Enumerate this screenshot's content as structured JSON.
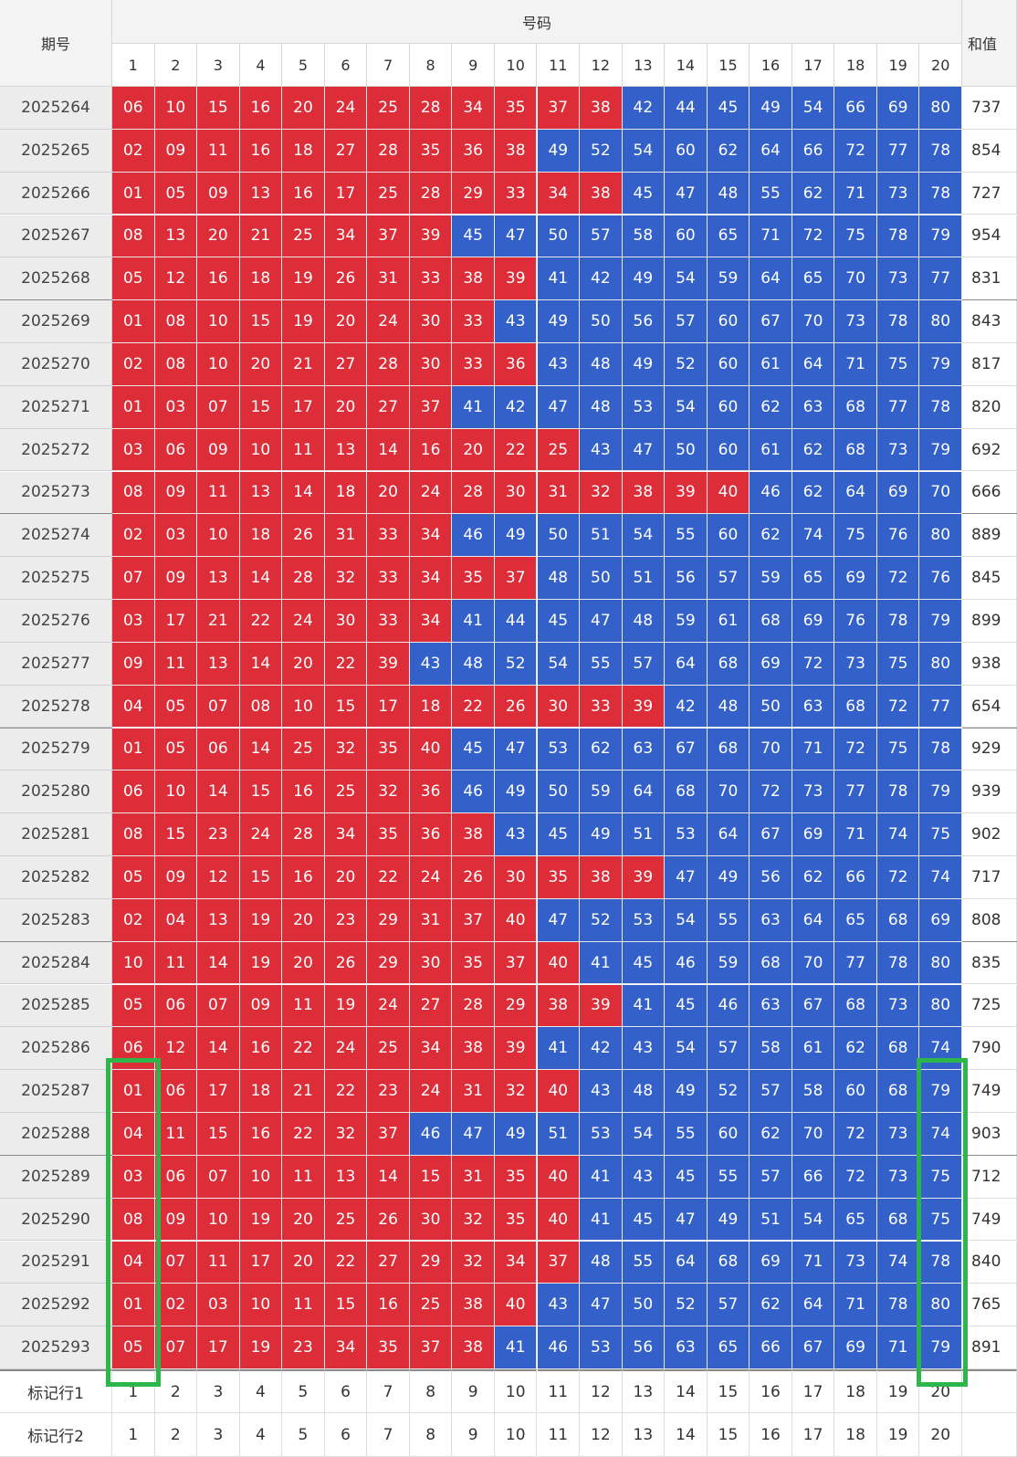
{
  "header": {
    "issue_label": "期号",
    "numbers_label": "号码",
    "sum_label": "和值",
    "columns": [
      1,
      2,
      3,
      4,
      5,
      6,
      7,
      8,
      9,
      10,
      11,
      12,
      13,
      14,
      15,
      16,
      17,
      18,
      19,
      20
    ]
  },
  "rows": [
    {
      "issue": "2025264",
      "numbers": [
        "06",
        "10",
        "15",
        "16",
        "20",
        "24",
        "25",
        "28",
        "34",
        "35",
        "37",
        "38",
        "42",
        "44",
        "45",
        "49",
        "54",
        "66",
        "69",
        "80"
      ],
      "sum": 737
    },
    {
      "issue": "2025265",
      "numbers": [
        "02",
        "09",
        "11",
        "16",
        "18",
        "27",
        "28",
        "35",
        "36",
        "38",
        "49",
        "52",
        "54",
        "60",
        "62",
        "64",
        "66",
        "72",
        "77",
        "78"
      ],
      "sum": 854
    },
    {
      "issue": "2025266",
      "numbers": [
        "01",
        "05",
        "09",
        "13",
        "16",
        "17",
        "25",
        "28",
        "29",
        "33",
        "34",
        "38",
        "45",
        "47",
        "48",
        "55",
        "62",
        "71",
        "73",
        "78"
      ],
      "sum": 727
    },
    {
      "issue": "2025267",
      "numbers": [
        "08",
        "13",
        "20",
        "21",
        "25",
        "34",
        "37",
        "39",
        "45",
        "47",
        "50",
        "57",
        "58",
        "60",
        "65",
        "71",
        "72",
        "75",
        "78",
        "79"
      ],
      "sum": 954
    },
    {
      "issue": "2025268",
      "numbers": [
        "05",
        "12",
        "16",
        "18",
        "19",
        "26",
        "31",
        "33",
        "38",
        "39",
        "41",
        "42",
        "49",
        "54",
        "59",
        "64",
        "65",
        "70",
        "73",
        "77"
      ],
      "sum": 831
    },
    {
      "issue": "2025269",
      "numbers": [
        "01",
        "08",
        "10",
        "15",
        "19",
        "20",
        "24",
        "30",
        "33",
        "43",
        "49",
        "50",
        "56",
        "57",
        "60",
        "67",
        "70",
        "73",
        "78",
        "80"
      ],
      "sum": 843
    },
    {
      "issue": "2025270",
      "numbers": [
        "02",
        "08",
        "10",
        "20",
        "21",
        "27",
        "28",
        "30",
        "33",
        "36",
        "43",
        "48",
        "49",
        "52",
        "60",
        "61",
        "64",
        "71",
        "75",
        "79"
      ],
      "sum": 817
    },
    {
      "issue": "2025271",
      "numbers": [
        "01",
        "03",
        "07",
        "15",
        "17",
        "20",
        "27",
        "37",
        "41",
        "42",
        "47",
        "48",
        "53",
        "54",
        "60",
        "62",
        "63",
        "68",
        "77",
        "78"
      ],
      "sum": 820
    },
    {
      "issue": "2025272",
      "numbers": [
        "03",
        "06",
        "09",
        "10",
        "11",
        "13",
        "14",
        "16",
        "20",
        "22",
        "25",
        "43",
        "47",
        "50",
        "60",
        "61",
        "62",
        "68",
        "73",
        "79"
      ],
      "sum": 692
    },
    {
      "issue": "2025273",
      "numbers": [
        "08",
        "09",
        "11",
        "13",
        "14",
        "18",
        "20",
        "24",
        "28",
        "30",
        "31",
        "32",
        "38",
        "39",
        "40",
        "46",
        "62",
        "64",
        "69",
        "70"
      ],
      "sum": 666
    },
    {
      "issue": "2025274",
      "numbers": [
        "02",
        "03",
        "10",
        "18",
        "26",
        "31",
        "33",
        "34",
        "46",
        "49",
        "50",
        "51",
        "54",
        "55",
        "60",
        "62",
        "74",
        "75",
        "76",
        "80"
      ],
      "sum": 889
    },
    {
      "issue": "2025275",
      "numbers": [
        "07",
        "09",
        "13",
        "14",
        "28",
        "32",
        "33",
        "34",
        "35",
        "37",
        "48",
        "50",
        "51",
        "56",
        "57",
        "59",
        "65",
        "69",
        "72",
        "76"
      ],
      "sum": 845
    },
    {
      "issue": "2025276",
      "numbers": [
        "03",
        "17",
        "21",
        "22",
        "24",
        "30",
        "33",
        "34",
        "41",
        "44",
        "45",
        "47",
        "48",
        "59",
        "61",
        "68",
        "69",
        "76",
        "78",
        "79"
      ],
      "sum": 899
    },
    {
      "issue": "2025277",
      "numbers": [
        "09",
        "11",
        "13",
        "14",
        "20",
        "22",
        "39",
        "43",
        "48",
        "52",
        "54",
        "55",
        "57",
        "64",
        "68",
        "69",
        "72",
        "73",
        "75",
        "80"
      ],
      "sum": 938
    },
    {
      "issue": "2025278",
      "numbers": [
        "04",
        "05",
        "07",
        "08",
        "10",
        "15",
        "17",
        "18",
        "22",
        "26",
        "30",
        "33",
        "39",
        "42",
        "48",
        "50",
        "63",
        "68",
        "72",
        "77"
      ],
      "sum": 654
    },
    {
      "issue": "2025279",
      "numbers": [
        "01",
        "05",
        "06",
        "14",
        "25",
        "32",
        "35",
        "40",
        "45",
        "47",
        "53",
        "62",
        "63",
        "67",
        "68",
        "70",
        "71",
        "72",
        "75",
        "78"
      ],
      "sum": 929
    },
    {
      "issue": "2025280",
      "numbers": [
        "06",
        "10",
        "14",
        "15",
        "16",
        "25",
        "32",
        "36",
        "46",
        "49",
        "50",
        "59",
        "64",
        "68",
        "70",
        "72",
        "73",
        "77",
        "78",
        "79"
      ],
      "sum": 939
    },
    {
      "issue": "2025281",
      "numbers": [
        "08",
        "15",
        "23",
        "24",
        "28",
        "34",
        "35",
        "36",
        "38",
        "43",
        "45",
        "49",
        "51",
        "53",
        "64",
        "67",
        "69",
        "71",
        "74",
        "75"
      ],
      "sum": 902
    },
    {
      "issue": "2025282",
      "numbers": [
        "05",
        "09",
        "12",
        "15",
        "16",
        "20",
        "22",
        "24",
        "26",
        "30",
        "35",
        "38",
        "39",
        "47",
        "49",
        "56",
        "62",
        "66",
        "72",
        "74"
      ],
      "sum": 717
    },
    {
      "issue": "2025283",
      "numbers": [
        "02",
        "04",
        "13",
        "19",
        "20",
        "23",
        "29",
        "31",
        "37",
        "40",
        "47",
        "52",
        "53",
        "54",
        "55",
        "63",
        "64",
        "65",
        "68",
        "69"
      ],
      "sum": 808
    },
    {
      "issue": "2025284",
      "numbers": [
        "10",
        "11",
        "14",
        "19",
        "20",
        "26",
        "29",
        "30",
        "35",
        "37",
        "40",
        "41",
        "45",
        "46",
        "59",
        "68",
        "70",
        "77",
        "78",
        "80"
      ],
      "sum": 835
    },
    {
      "issue": "2025285",
      "numbers": [
        "05",
        "06",
        "07",
        "09",
        "11",
        "19",
        "24",
        "27",
        "28",
        "29",
        "38",
        "39",
        "41",
        "45",
        "46",
        "63",
        "67",
        "68",
        "73",
        "80"
      ],
      "sum": 725
    },
    {
      "issue": "2025286",
      "numbers": [
        "06",
        "12",
        "14",
        "16",
        "22",
        "24",
        "25",
        "34",
        "38",
        "39",
        "41",
        "42",
        "43",
        "54",
        "57",
        "58",
        "61",
        "62",
        "68",
        "74"
      ],
      "sum": 790
    },
    {
      "issue": "2025287",
      "numbers": [
        "01",
        "06",
        "17",
        "18",
        "21",
        "22",
        "23",
        "24",
        "31",
        "32",
        "40",
        "43",
        "48",
        "49",
        "52",
        "57",
        "58",
        "60",
        "68",
        "79"
      ],
      "sum": 749
    },
    {
      "issue": "2025288",
      "numbers": [
        "04",
        "11",
        "15",
        "16",
        "22",
        "32",
        "37",
        "46",
        "47",
        "49",
        "51",
        "53",
        "54",
        "55",
        "60",
        "62",
        "70",
        "72",
        "73",
        "74"
      ],
      "sum": 903
    },
    {
      "issue": "2025289",
      "numbers": [
        "03",
        "06",
        "07",
        "10",
        "11",
        "13",
        "14",
        "15",
        "31",
        "35",
        "40",
        "41",
        "43",
        "45",
        "55",
        "57",
        "66",
        "72",
        "73",
        "75"
      ],
      "sum": 712
    },
    {
      "issue": "2025290",
      "numbers": [
        "08",
        "09",
        "10",
        "19",
        "20",
        "25",
        "26",
        "30",
        "32",
        "35",
        "40",
        "41",
        "45",
        "47",
        "49",
        "51",
        "54",
        "65",
        "68",
        "75"
      ],
      "sum": 749
    },
    {
      "issue": "2025291",
      "numbers": [
        "04",
        "07",
        "11",
        "17",
        "20",
        "22",
        "27",
        "29",
        "32",
        "34",
        "37",
        "48",
        "55",
        "64",
        "68",
        "69",
        "71",
        "73",
        "74",
        "78"
      ],
      "sum": 840
    },
    {
      "issue": "2025292",
      "numbers": [
        "01",
        "02",
        "03",
        "10",
        "11",
        "15",
        "16",
        "25",
        "38",
        "40",
        "43",
        "47",
        "50",
        "52",
        "57",
        "62",
        "64",
        "71",
        "78",
        "80"
      ],
      "sum": 765
    },
    {
      "issue": "2025293",
      "numbers": [
        "05",
        "07",
        "17",
        "19",
        "23",
        "34",
        "35",
        "37",
        "38",
        "41",
        "46",
        "53",
        "56",
        "63",
        "65",
        "66",
        "67",
        "69",
        "71",
        "79"
      ],
      "sum": 891
    }
  ],
  "marker_rows": [
    {
      "label": "标记行1",
      "values": [
        1,
        2,
        3,
        4,
        5,
        6,
        7,
        8,
        9,
        10,
        11,
        12,
        13,
        14,
        15,
        16,
        17,
        18,
        19,
        20
      ]
    },
    {
      "label": "标记行2",
      "values": [
        1,
        2,
        3,
        4,
        5,
        6,
        7,
        8,
        9,
        10,
        11,
        12,
        13,
        14,
        15,
        16,
        17,
        18,
        19,
        20
      ]
    }
  ],
  "colors": {
    "low": "#dc2d39",
    "high": "#3461c9",
    "highlight": "#2db64a"
  }
}
